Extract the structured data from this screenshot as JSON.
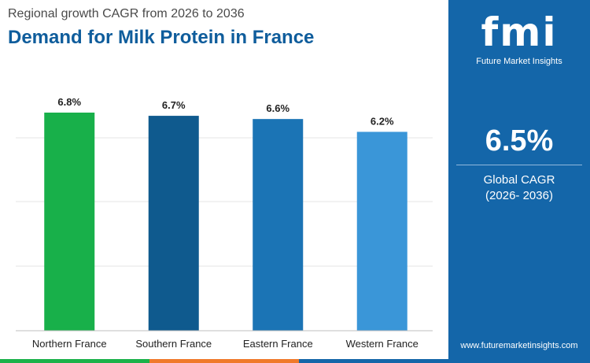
{
  "header": {
    "subtitle": "Regional growth CAGR from 2026 to 2036",
    "title": "Demand for Milk Protein in France"
  },
  "sidebar": {
    "brand": "fmi",
    "brand_sub": "Future Market Insights",
    "kpi_value": "6.5%",
    "kpi_label_line1": "Global CAGR",
    "kpi_label_line2": "(2026- 2036)",
    "website": "www.futuremarketinsights.com",
    "background_color": "#1466a9"
  },
  "footer_colors": [
    "#1bb24a",
    "#f07a2b",
    "#1466a9"
  ],
  "chart_data": {
    "type": "bar",
    "categories": [
      "Northern France",
      "Southern France",
      "Eastern France",
      "Western France"
    ],
    "values": [
      6.8,
      6.7,
      6.6,
      6.2
    ],
    "value_labels": [
      "6.8%",
      "6.7%",
      "6.6%",
      "6.2%"
    ],
    "colors": [
      "#18b04a",
      "#0f5a8e",
      "#1b74b5",
      "#3a96d8"
    ],
    "ylim": [
      0,
      6.8
    ],
    "grid": true,
    "legend": "none"
  }
}
